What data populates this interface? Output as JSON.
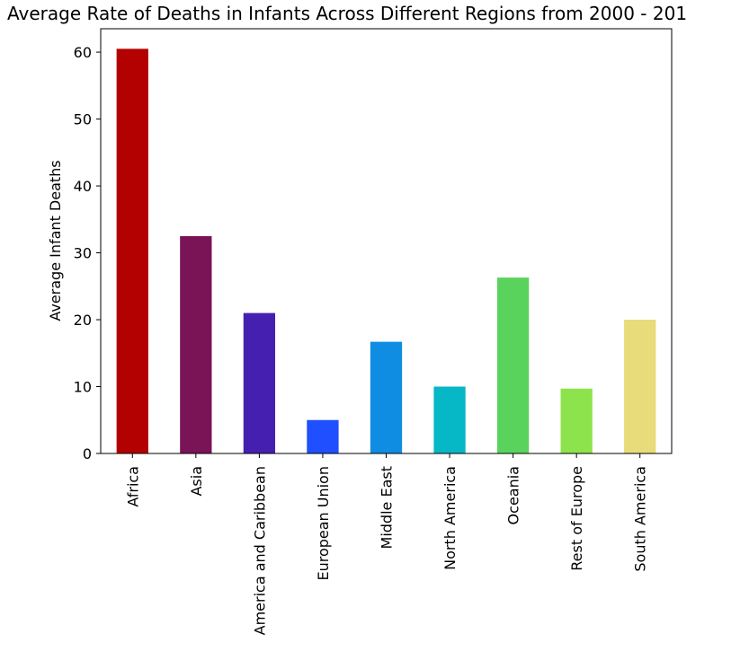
{
  "chart_data": {
    "type": "bar",
    "title": "Average Rate of Deaths in Infants Across Different Regions from 2000 - 201",
    "xlabel": "",
    "ylabel": "Average Infant Deaths",
    "ylim": [
      0,
      63.5
    ],
    "yticks": [
      0,
      10,
      20,
      30,
      40,
      50,
      60
    ],
    "grid": false,
    "categories": [
      "Africa",
      "Asia",
      "America and Caribbean",
      "European Union",
      "Middle East",
      "North America",
      "Oceania",
      "Rest of Europe",
      "South America"
    ],
    "values": [
      60.5,
      32.5,
      21.0,
      5.0,
      16.7,
      10.0,
      26.3,
      9.7,
      20.0
    ],
    "colors": [
      "#b30000",
      "#7b1357",
      "#4520b0",
      "#1f4fff",
      "#0f8de3",
      "#06b7c6",
      "#5ad35c",
      "#8de34b",
      "#e8db7a"
    ]
  }
}
